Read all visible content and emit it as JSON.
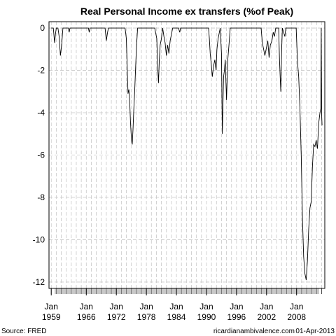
{
  "chart_data": {
    "type": "line",
    "title": "Real Personal Income ex transfers (%of Peak)",
    "xlabel": "",
    "ylabel": "",
    "x_range": [
      "1959-01",
      "2013-02"
    ],
    "ylim": [
      -12.3,
      0.3
    ],
    "y_ticks": [
      0,
      -2,
      -4,
      -6,
      -8,
      -10,
      -12
    ],
    "x_tick_labels": [
      {
        "month": "Jan",
        "year": "1959",
        "x": "1959-01"
      },
      {
        "month": "Jan",
        "year": "1966",
        "x": "1966-01"
      },
      {
        "month": "Jan",
        "year": "1972",
        "x": "1972-01"
      },
      {
        "month": "Jan",
        "year": "1978",
        "x": "1978-01"
      },
      {
        "month": "Jan",
        "year": "1984",
        "x": "1984-01"
      },
      {
        "month": "Jan",
        "year": "1990",
        "x": "1990-01"
      },
      {
        "month": "Jan",
        "year": "1996",
        "x": "1996-01"
      },
      {
        "month": "Jan",
        "year": "2002",
        "x": "2002-01"
      },
      {
        "month": "Jan",
        "year": "2008",
        "x": "2008-01"
      }
    ],
    "grid": true,
    "line_color": "#000000",
    "grid_color": "#c8c8c8",
    "series": [
      {
        "name": "",
        "points": [
          [
            "1959-01",
            0
          ],
          [
            "1959-06",
            0
          ],
          [
            "1959-09",
            -0.7
          ],
          [
            "1959-11",
            -0.3
          ],
          [
            "1960-01",
            0
          ],
          [
            "1960-05",
            0
          ],
          [
            "1960-08",
            -0.4
          ],
          [
            "1960-11",
            -1.3
          ],
          [
            "1961-02",
            -0.8
          ],
          [
            "1961-05",
            0
          ],
          [
            "1962-06",
            0
          ],
          [
            "1962-08",
            -0.2
          ],
          [
            "1962-10",
            0
          ],
          [
            "1966-01",
            0
          ],
          [
            "1966-06",
            0
          ],
          [
            "1966-08",
            -0.2
          ],
          [
            "1966-10",
            0
          ],
          [
            "1969-10",
            0
          ],
          [
            "1970-01",
            -0.6
          ],
          [
            "1970-04",
            -0.2
          ],
          [
            "1970-06",
            0
          ],
          [
            "1973-10",
            0
          ],
          [
            "1974-01",
            -0.5
          ],
          [
            "1974-03",
            -1.8
          ],
          [
            "1974-05",
            -3.1
          ],
          [
            "1974-07",
            -2.9
          ],
          [
            "1974-09",
            -3.5
          ],
          [
            "1974-11",
            -4.5
          ],
          [
            "1975-01",
            -5.2
          ],
          [
            "1975-03",
            -5.5
          ],
          [
            "1975-05",
            -4.8
          ],
          [
            "1975-07",
            -3.8
          ],
          [
            "1975-09",
            -3.0
          ],
          [
            "1975-11",
            -2.0
          ],
          [
            "1976-01",
            -1.0
          ],
          [
            "1976-04",
            0
          ],
          [
            "1979-09",
            0
          ],
          [
            "1980-02",
            -0.5
          ],
          [
            "1980-04",
            -1.8
          ],
          [
            "1980-06",
            -2.6
          ],
          [
            "1980-08",
            -1.5
          ],
          [
            "1980-10",
            -0.8
          ],
          [
            "1981-01",
            -0.5
          ],
          [
            "1981-04",
            0
          ],
          [
            "1981-07",
            -0.4
          ],
          [
            "1981-10",
            -0.7
          ],
          [
            "1982-01",
            -1.3
          ],
          [
            "1982-04",
            -0.8
          ],
          [
            "1982-07",
            -1.2
          ],
          [
            "1982-10",
            -0.6
          ],
          [
            "1983-01",
            -0.3
          ],
          [
            "1983-04",
            0
          ],
          [
            "1984-06",
            0
          ],
          [
            "1984-09",
            -0.2
          ],
          [
            "1984-11",
            0
          ],
          [
            "1990-06",
            0
          ],
          [
            "1990-08",
            -0.5
          ],
          [
            "1990-10",
            -1.2
          ],
          [
            "1991-01",
            -1.8
          ],
          [
            "1991-03",
            -2.3
          ],
          [
            "1991-06",
            -1.8
          ],
          [
            "1991-09",
            -1.5
          ],
          [
            "1991-12",
            -2.0
          ],
          [
            "1992-02",
            -1.0
          ],
          [
            "1992-05",
            -0.5
          ],
          [
            "1992-08",
            -0.2
          ],
          [
            "1992-10",
            0
          ],
          [
            "1993-01",
            -1.2
          ],
          [
            "1993-03",
            -5.0
          ],
          [
            "1993-06",
            -2.3
          ],
          [
            "1993-08",
            -2.0
          ],
          [
            "1993-10",
            -1.5
          ],
          [
            "1994-01",
            -3.4
          ],
          [
            "1994-04",
            -1.5
          ],
          [
            "1994-07",
            -0.8
          ],
          [
            "1994-10",
            0
          ],
          [
            "2000-12",
            0
          ],
          [
            "2001-03",
            -0.7
          ],
          [
            "2001-06",
            -1.0
          ],
          [
            "2001-09",
            -1.3
          ],
          [
            "2002-01",
            -0.9
          ],
          [
            "2002-04",
            -0.6
          ],
          [
            "2002-07",
            -1.4
          ],
          [
            "2002-10",
            -0.8
          ],
          [
            "2003-02",
            -0.6
          ],
          [
            "2003-05",
            -0.2
          ],
          [
            "2003-08",
            -0.4
          ],
          [
            "2003-11",
            0
          ],
          [
            "2004-06",
            0
          ],
          [
            "2004-08",
            -1.5
          ],
          [
            "2004-11",
            -3.0
          ],
          [
            "2005-01",
            -1.2
          ],
          [
            "2005-03",
            0
          ],
          [
            "2005-09",
            -0.4
          ],
          [
            "2005-11",
            0
          ],
          [
            "2007-12",
            0
          ],
          [
            "2008-02",
            -1.0
          ],
          [
            "2008-04",
            -1.8
          ],
          [
            "2008-06",
            -2.3
          ],
          [
            "2008-09",
            -3.8
          ],
          [
            "2008-12",
            -6.0
          ],
          [
            "2009-03",
            -9.0
          ],
          [
            "2009-06",
            -10.8
          ],
          [
            "2009-09",
            -11.6
          ],
          [
            "2009-12",
            -11.9
          ],
          [
            "2010-03",
            -11.0
          ],
          [
            "2010-06",
            -9.5
          ],
          [
            "2010-09",
            -8.5
          ],
          [
            "2010-12",
            -8.2
          ],
          [
            "2011-03",
            -6.5
          ],
          [
            "2011-06",
            -5.5
          ],
          [
            "2011-09",
            -5.6
          ],
          [
            "2011-12",
            -5.3
          ],
          [
            "2012-03",
            -5.7
          ],
          [
            "2012-06",
            -4.5
          ],
          [
            "2012-09",
            -4.0
          ],
          [
            "2012-11",
            -3.8
          ],
          [
            "2012-12",
            0
          ],
          [
            "2013-01",
            -4.1
          ],
          [
            "2013-02",
            -4.6
          ]
        ]
      }
    ]
  },
  "footer": {
    "source": "Source: FRED",
    "site": "ricardianambivalence.com",
    "date": "01-Apr-2013"
  }
}
